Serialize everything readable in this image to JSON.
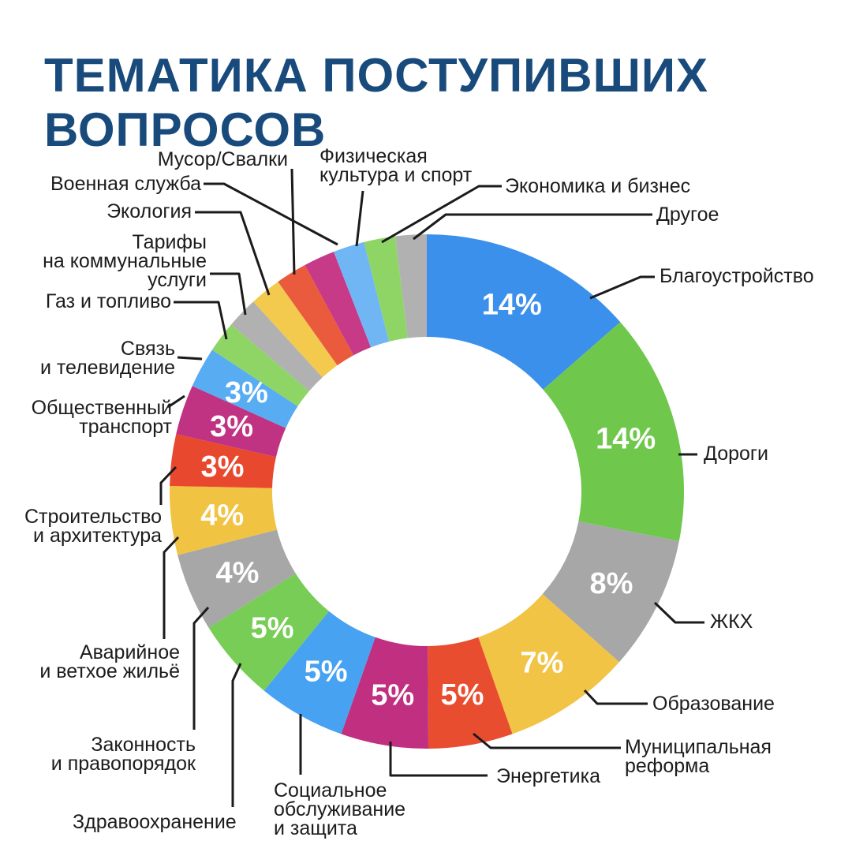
{
  "title": "ТЕМАТИКА ПОСТУПИВШИХ\nВОПРОСОВ",
  "style": {
    "background": "#ffffff",
    "title_color": "#184a7c",
    "label_color": "#1c1c1c",
    "leader_line_color": "#1b1b1b",
    "percent_text_color": "#ffffff"
  },
  "chart_data": {
    "type": "pie",
    "subtype": "donut",
    "title": "ТЕМАТИКА ПОСТУПИВШИХ ВОПРОСОВ",
    "unit": "%",
    "legend_position": "callout-labels-around-donut",
    "start_angle_deg": 0,
    "direction": "clockwise",
    "slices": [
      {
        "label": "Благоустройство",
        "callout": "Благоустройство",
        "value": 14,
        "percent_label": "14%",
        "color": "#3b90ec"
      },
      {
        "label": "Дороги",
        "callout": "Дороги",
        "value": 14,
        "percent_label": "14%",
        "color": "#6fc84c"
      },
      {
        "label": "ЖКХ",
        "callout": "ЖКХ",
        "value": 8,
        "percent_label": "8%",
        "color": "#a7a7a7"
      },
      {
        "label": "Образование",
        "callout": "Образование",
        "value": 7,
        "percent_label": "7%",
        "color": "#f1c445"
      },
      {
        "label": "Муниципальная реформа",
        "callout": "Муниципальная\nреформа",
        "value": 5,
        "percent_label": "5%",
        "color": "#e94d30"
      },
      {
        "label": "Энергетика",
        "callout": "Энергетика",
        "value": 5,
        "percent_label": "5%",
        "color": "#c02f80"
      },
      {
        "label": "Социальное обслуживание и защита",
        "callout": "Социальное\nобслуживание\nи защита",
        "value": 5,
        "percent_label": "5%",
        "color": "#47a2f1"
      },
      {
        "label": "Здравоохранение",
        "callout": "Здравоохранение",
        "value": 5,
        "percent_label": "5%",
        "color": "#77cd55"
      },
      {
        "label": "Законность и правопорядок",
        "callout": "Законность\nи правопорядок",
        "value": 4,
        "percent_label": "4%",
        "color": "#a7a7a7"
      },
      {
        "label": "Аварийное и ветхое жильё",
        "callout": "Аварийное\nи ветхое жильё",
        "value": 4,
        "percent_label": "4%",
        "color": "#f0c342"
      },
      {
        "label": "Строительство и архитектура",
        "callout": "Строительство\nи архитектура",
        "value": 3,
        "percent_label": "3%",
        "color": "#e8492e"
      },
      {
        "label": "Общественный транспорт",
        "callout": "Общественный\nтранспорт",
        "value": 3,
        "percent_label": "3%",
        "color": "#c03382"
      },
      {
        "label": "Связь и телевидение",
        "callout": "Связь\nи телевидение",
        "value": 3,
        "percent_label": "3%",
        "color": "#58acf2"
      },
      {
        "label": "Газ и топливо",
        "callout": "Газ и топливо",
        "value": 2.5,
        "percent_label": "",
        "color": "#8ed566"
      },
      {
        "label": "Тарифы на коммунальные услуги",
        "callout": "Тарифы\nна коммунальные\nуслуги",
        "value": 2.5,
        "percent_label": "",
        "color": "#b1b1b1"
      },
      {
        "label": "Экология",
        "callout": "Экология",
        "value": 2.5,
        "percent_label": "",
        "color": "#f3ca4e"
      },
      {
        "label": "Мусор/Свалки",
        "callout": "Мусор/Свалки",
        "value": 2.5,
        "percent_label": "",
        "color": "#ea5a3c"
      },
      {
        "label": "Военная служба",
        "callout": "Военная служба",
        "value": 2.5,
        "percent_label": "",
        "color": "#c63a88"
      },
      {
        "label": "Физическая культура и спорт",
        "callout": "Физическая\nкультура и спорт",
        "value": 2.5,
        "percent_label": "",
        "color": "#70b6f4"
      },
      {
        "label": "Экономика и бизнес",
        "callout": "Экономика и бизнес",
        "value": 2.5,
        "percent_label": "",
        "color": "#8ed566"
      },
      {
        "label": "Другое",
        "callout": "Другое",
        "value": 2.5,
        "percent_label": "",
        "color": "#b1b1b1"
      }
    ]
  }
}
